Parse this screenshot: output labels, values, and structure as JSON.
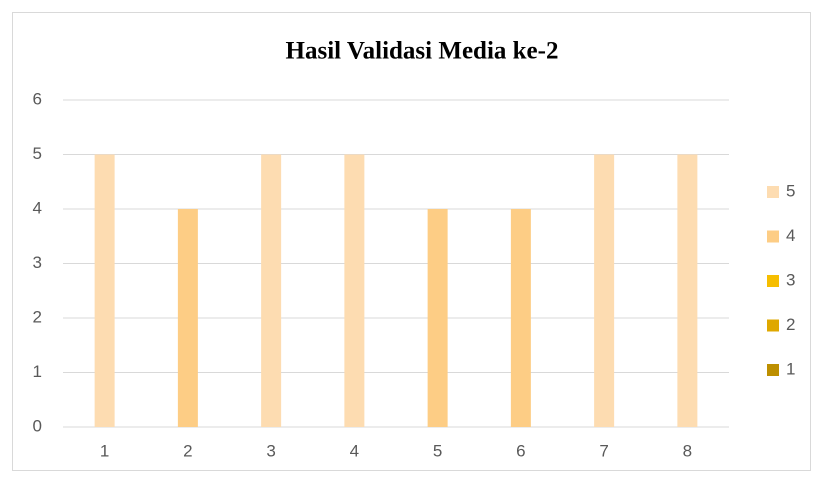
{
  "chart_data": {
    "type": "stacked-bar",
    "title": "Hasil Validasi Media ke-2",
    "categories": [
      "1",
      "2",
      "3",
      "4",
      "5",
      "6",
      "7",
      "8"
    ],
    "series": [
      {
        "name": "5",
        "color": "#fddcb1",
        "values": [
          5,
          null,
          5,
          5,
          null,
          null,
          5,
          5
        ]
      },
      {
        "name": "4",
        "color": "#fdcd85",
        "values": [
          null,
          4,
          null,
          null,
          4,
          4,
          null,
          null
        ]
      },
      {
        "name": "3",
        "color": "#f6be00",
        "values": [
          null,
          null,
          null,
          null,
          null,
          null,
          null,
          null
        ]
      },
      {
        "name": "2",
        "color": "#dfa800",
        "values": [
          null,
          null,
          null,
          null,
          null,
          null,
          null,
          null
        ]
      },
      {
        "name": "1",
        "color": "#bd8f00",
        "values": [
          null,
          null,
          null,
          null,
          null,
          null,
          null,
          null
        ]
      }
    ],
    "ylim": [
      0,
      6
    ],
    "yticks": [
      0,
      1,
      2,
      3,
      4,
      5,
      6
    ],
    "grid": true,
    "legend": "right"
  }
}
